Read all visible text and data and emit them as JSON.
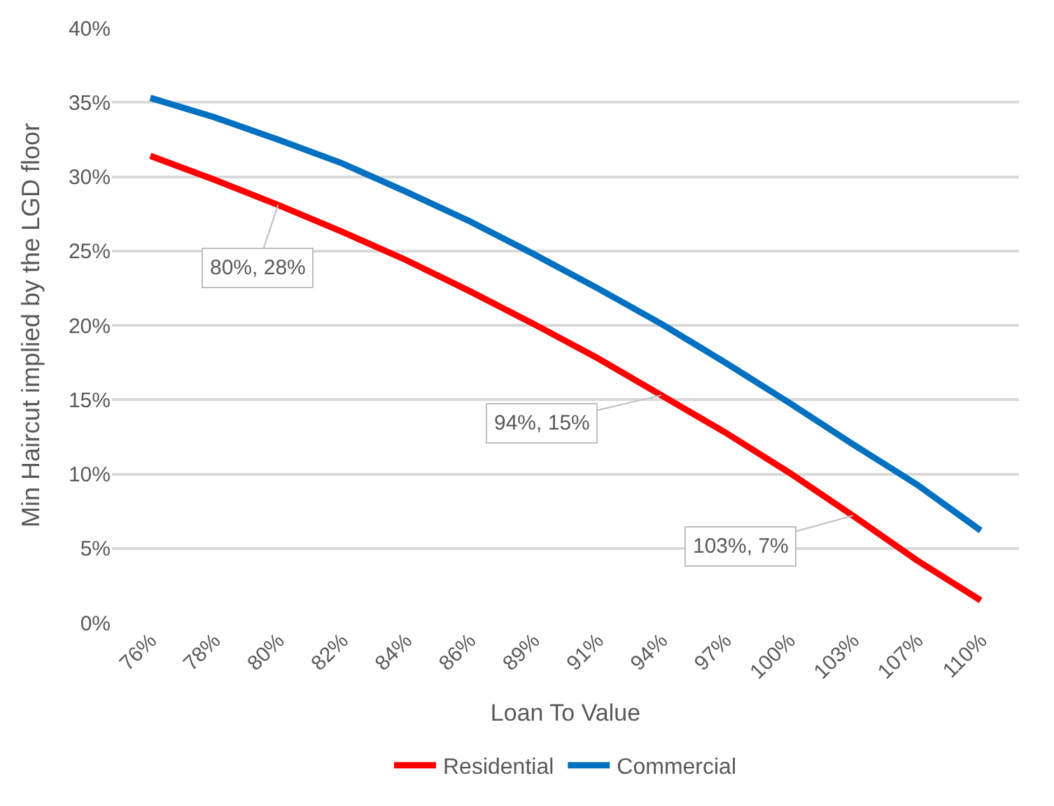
{
  "chart_data": {
    "type": "line",
    "ylabel": "Min Haircut implied by the LGD floor",
    "xlabel": "Loan To Value",
    "categories": [
      "76%",
      "78%",
      "80%",
      "82%",
      "84%",
      "86%",
      "89%",
      "91%",
      "94%",
      "97%",
      "100%",
      "103%",
      "107%",
      "110%"
    ],
    "series": [
      {
        "name": "Residential",
        "color": "#ff0000",
        "values": [
          31.4,
          29.8,
          28.1,
          26.3,
          24.4,
          22.3,
          20.1,
          17.8,
          15.3,
          12.8,
          10.1,
          7.2,
          4.2,
          1.5
        ]
      },
      {
        "name": "Commercial",
        "color": "#0070c0",
        "values": [
          35.3,
          34.0,
          32.5,
          30.9,
          29.0,
          27.0,
          24.8,
          22.5,
          20.1,
          17.5,
          14.8,
          12.0,
          9.3,
          6.2
        ]
      }
    ],
    "ylim": [
      0,
      40
    ],
    "yticks": [
      {
        "value": 0,
        "label": "0%"
      },
      {
        "value": 5,
        "label": "5%"
      },
      {
        "value": 10,
        "label": "10%"
      },
      {
        "value": 15,
        "label": "15%"
      },
      {
        "value": 20,
        "label": "20%"
      },
      {
        "value": 25,
        "label": "25%"
      },
      {
        "value": 30,
        "label": "30%"
      },
      {
        "value": 35,
        "label": "35%"
      },
      {
        "value": 40,
        "label": "40%"
      }
    ],
    "grid": "y",
    "legend": "bottom",
    "marker": "none",
    "line_style": "solid",
    "annotations": [
      {
        "text": "80%, 28%",
        "x": "80%",
        "y": 28.1
      },
      {
        "text": "94%, 15%",
        "x": "94%",
        "y": 15.3
      },
      {
        "text": "103%, 7%",
        "x": "103%",
        "y": 7.2
      }
    ]
  }
}
